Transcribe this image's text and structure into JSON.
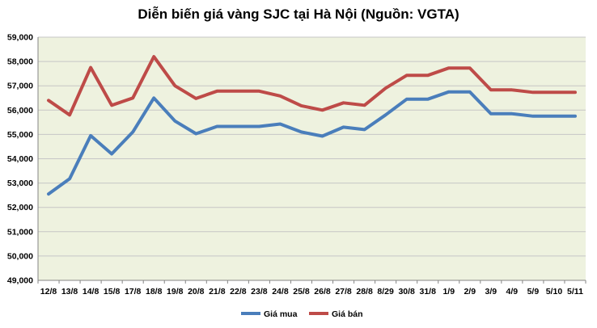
{
  "chart_data": {
    "type": "line",
    "title": "Diễn biến giá vàng SJC tại Hà Nội (Nguồn: VGTA)",
    "categories": [
      "12/8",
      "13/8",
      "14/8",
      "15/8",
      "17/8",
      "18/8",
      "19/8",
      "20/8",
      "21/8",
      "22/8",
      "23/8",
      "24/8",
      "25/8",
      "26/8",
      "27/8",
      "28/8",
      "8/29",
      "30/8",
      "31/8",
      "1/9",
      "2/9",
      "3/9",
      "4/9",
      "5/9",
      "5/10",
      "5/11"
    ],
    "series": [
      {
        "name": "Giá mua",
        "color": "#4A7EBB",
        "values": [
          52550,
          53180,
          54950,
          54200,
          55100,
          56500,
          55550,
          55030,
          55330,
          55330,
          55330,
          55430,
          55100,
          54930,
          55300,
          55200,
          55800,
          56450,
          56450,
          56750,
          56750,
          55850,
          55850,
          55750,
          55750,
          55750
        ]
      },
      {
        "name": "Giá bán",
        "color": "#BE4B48",
        "values": [
          56400,
          55800,
          57750,
          56200,
          56500,
          58200,
          57000,
          56480,
          56780,
          56780,
          56780,
          56580,
          56180,
          56000,
          56300,
          56200,
          56900,
          57430,
          57430,
          57730,
          57730,
          56830,
          56830,
          56730,
          56730,
          56730
        ]
      }
    ],
    "y_ticks": [
      "49,000",
      "50,000",
      "51,000",
      "52,000",
      "53,000",
      "54,000",
      "55,000",
      "56,000",
      "57,000",
      "58,000",
      "59,000"
    ],
    "ylim": [
      49000,
      59000
    ],
    "grid": true,
    "legend": "bottom",
    "plot_background": "#EEF2DF"
  }
}
